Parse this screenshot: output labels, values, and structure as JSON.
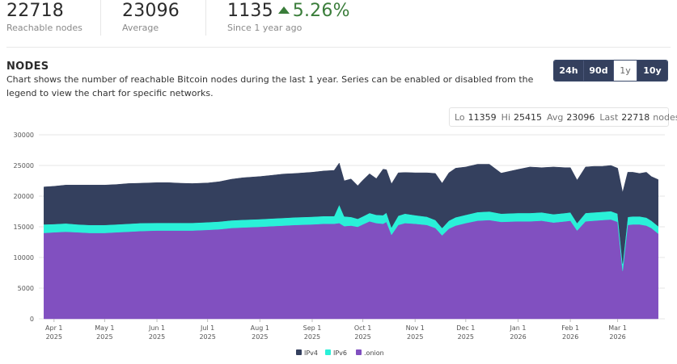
{
  "stats": [
    {
      "value": "22718",
      "label": "Reachable nodes"
    },
    {
      "value": "23096",
      "label": "Average"
    },
    {
      "value": "1135",
      "change": "5.26%",
      "label": "Since 1 year ago"
    }
  ],
  "section": {
    "title": "NODES",
    "description": "Chart shows the number of reachable Bitcoin nodes during the last 1 year. Series can be enabled or disabled from the legend to view the chart for specific networks."
  },
  "ranges": [
    {
      "label": "24h",
      "active": false
    },
    {
      "label": "90d",
      "active": false
    },
    {
      "label": "1y",
      "active": true
    },
    {
      "label": "10y",
      "active": false
    }
  ],
  "summary": {
    "lo_label": "Lo",
    "lo": "11359",
    "hi_label": "Hi",
    "hi": "25415",
    "avg_label": "Avg",
    "avg": "23096",
    "last_label": "Last",
    "last": "22718",
    "unit": "nodes"
  },
  "colors": {
    "ipv4": "#34405e",
    "ipv6": "#2af0d8",
    "onion": "#8150c0"
  },
  "chart_data": {
    "type": "area",
    "stacked": true,
    "x": [
      "2025-03-26",
      "2025-04-01",
      "2025-04-08",
      "2025-04-15",
      "2025-04-22",
      "2025-05-01",
      "2025-05-08",
      "2025-05-15",
      "2025-05-22",
      "2025-06-01",
      "2025-06-08",
      "2025-06-15",
      "2025-06-22",
      "2025-07-01",
      "2025-07-08",
      "2025-07-15",
      "2025-07-22",
      "2025-08-01",
      "2025-08-08",
      "2025-08-15",
      "2025-08-22",
      "2025-09-01",
      "2025-09-08",
      "2025-09-14",
      "2025-09-17",
      "2025-09-20",
      "2025-09-24",
      "2025-09-28",
      "2025-10-01",
      "2025-10-05",
      "2025-10-09",
      "2025-10-13",
      "2025-10-15",
      "2025-10-18",
      "2025-10-22",
      "2025-10-26",
      "2025-11-01",
      "2025-11-08",
      "2025-11-13",
      "2025-11-17",
      "2025-11-21",
      "2025-11-25",
      "2025-12-01",
      "2025-12-08",
      "2025-12-15",
      "2025-12-22",
      "2026-01-01",
      "2026-01-08",
      "2026-01-15",
      "2026-01-22",
      "2026-01-29",
      "2026-02-01",
      "2026-02-05",
      "2026-02-10",
      "2026-02-15",
      "2026-02-20",
      "2026-02-25",
      "2026-03-01",
      "2026-03-04",
      "2026-03-07",
      "2026-03-10",
      "2026-03-14",
      "2026-03-18",
      "2026-03-21",
      "2026-03-25"
    ],
    "x_ticks": [
      {
        "date": "2025-04-01",
        "line1": "Apr 1",
        "line2": "2025"
      },
      {
        "date": "2025-05-01",
        "line1": "May 1",
        "line2": "2025"
      },
      {
        "date": "2025-06-01",
        "line1": "Jun 1",
        "line2": "2025"
      },
      {
        "date": "2025-07-01",
        "line1": "Jul 1",
        "line2": "2025"
      },
      {
        "date": "2025-08-01",
        "line1": "Aug 1",
        "line2": "2025"
      },
      {
        "date": "2025-09-01",
        "line1": "Sep 1",
        "line2": "2025"
      },
      {
        "date": "2025-10-01",
        "line1": "Oct 1",
        "line2": "2025"
      },
      {
        "date": "2025-11-01",
        "line1": "Nov 1",
        "line2": "2025"
      },
      {
        "date": "2025-12-01",
        "line1": "Dec 1",
        "line2": "2025"
      },
      {
        "date": "2026-01-01",
        "line1": "Jan 1",
        "line2": "2026"
      },
      {
        "date": "2026-02-01",
        "line1": "Feb 1",
        "line2": "2026"
      },
      {
        "date": "2026-03-01",
        "line1": "Mar 1",
        "line2": "2026"
      }
    ],
    "y_ticks": [
      0,
      5000,
      10000,
      15000,
      20000,
      25000,
      30000
    ],
    "ylim": [
      0,
      30000
    ],
    "grid": "horizontal",
    "legend_position": "bottom-center",
    "series": [
      {
        "name": ".onion",
        "key": "onion",
        "values": [
          14000,
          14100,
          14200,
          14100,
          14000,
          14000,
          14100,
          14200,
          14300,
          14400,
          14400,
          14400,
          14400,
          14500,
          14600,
          14800,
          14900,
          15000,
          15100,
          15200,
          15300,
          15400,
          15500,
          15500,
          15600,
          15100,
          15200,
          15000,
          15400,
          15900,
          15600,
          15500,
          15800,
          13700,
          15300,
          15600,
          15500,
          15300,
          14800,
          13600,
          14700,
          15200,
          15600,
          16000,
          16100,
          15800,
          15900,
          15900,
          16000,
          15700,
          15900,
          16000,
          14400,
          15900,
          16000,
          16100,
          16200,
          15800,
          7800,
          15300,
          15400,
          15400,
          15200,
          14800,
          13900
        ]
      },
      {
        "name": "IPv6",
        "key": "ipv6",
        "values": [
          1400,
          1350,
          1350,
          1300,
          1300,
          1300,
          1300,
          1300,
          1300,
          1250,
          1250,
          1250,
          1250,
          1250,
          1250,
          1250,
          1250,
          1250,
          1250,
          1250,
          1250,
          1250,
          1250,
          1250,
          3000,
          1600,
          1400,
          1300,
          1300,
          1350,
          1350,
          1400,
          1500,
          1200,
          1500,
          1550,
          1400,
          1350,
          1300,
          1200,
          1300,
          1350,
          1350,
          1400,
          1400,
          1350,
          1350,
          1350,
          1350,
          1350,
          1350,
          1350,
          1200,
          1350,
          1350,
          1350,
          1350,
          1350,
          1200,
          1300,
          1300,
          1300,
          1300,
          1200,
          1200
        ]
      },
      {
        "name": "IPv4",
        "key": "ipv4",
        "values": [
          6100,
          6150,
          6250,
          6400,
          6500,
          6500,
          6500,
          6550,
          6500,
          6550,
          6550,
          6450,
          6400,
          6400,
          6500,
          6700,
          6850,
          6950,
          7050,
          7150,
          7150,
          7250,
          7350,
          7450,
          6800,
          5800,
          6200,
          5400,
          5900,
          6400,
          5900,
          7500,
          7000,
          7100,
          7000,
          6700,
          6900,
          7150,
          7600,
          7300,
          7800,
          8000,
          7800,
          7800,
          7700,
          6600,
          7100,
          7500,
          7300,
          7700,
          7400,
          7300,
          7000,
          7500,
          7500,
          7400,
          7450,
          7400,
          11600,
          7300,
          7200,
          7000,
          7400,
          7200,
          7600
        ]
      }
    ]
  }
}
